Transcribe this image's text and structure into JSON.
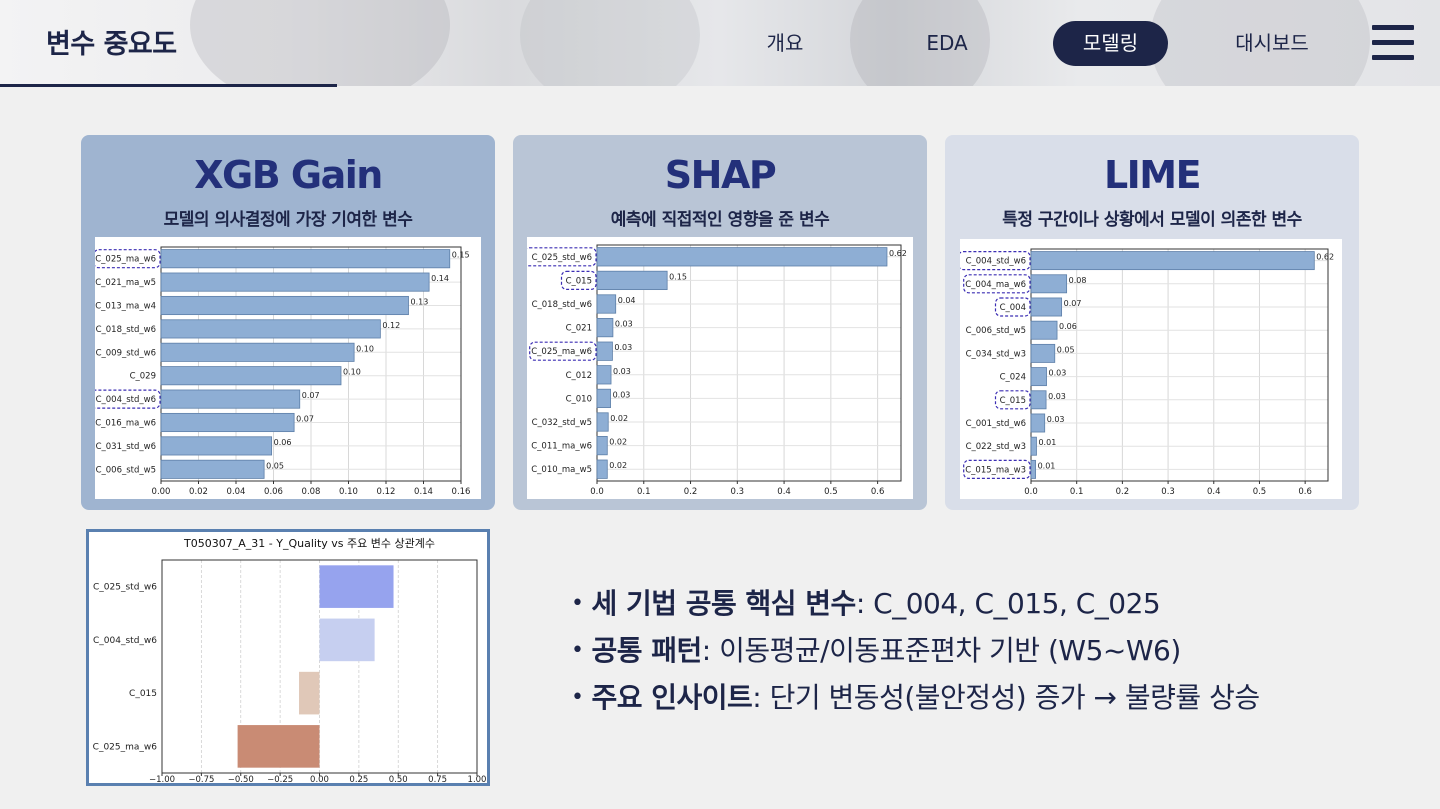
{
  "header": {
    "title": "변수 중요도",
    "nav": [
      {
        "label": "개요",
        "active": false
      },
      {
        "label": "EDA",
        "active": false
      },
      {
        "label": "모델링",
        "active": true
      },
      {
        "label": "대시보드",
        "active": false
      }
    ],
    "menu_icon": "hamburger-menu-icon"
  },
  "cards": [
    {
      "title": "XGB Gain",
      "subtitle": "모델의 의사결정에 가장 기여한 변수"
    },
    {
      "title": "SHAP",
      "subtitle": "예측에 직접적인 영향을 준 변수"
    },
    {
      "title": "LIME",
      "subtitle": "특정 구간이나 상황에서 모델이 의존한 변수"
    }
  ],
  "colors": {
    "navy": "#1d2548",
    "title_blue": "#23307a",
    "bar_blue": "#8eaed4",
    "highlight": "#3b2db3",
    "card1_bg": "#9fb4d0",
    "card2_bg": "#b9c5d6",
    "card3_bg": "#d9dee9"
  },
  "chart_data": [
    {
      "type": "bar",
      "orientation": "horizontal",
      "categories": [
        "C_025_ma_w6",
        "C_021_ma_w5",
        "C_013_ma_w4",
        "C_018_std_w6",
        "C_009_std_w6",
        "C_029",
        "C_004_std_w6",
        "C_016_ma_w6",
        "C_031_std_w6",
        "C_006_std_w5"
      ],
      "values": [
        0.154,
        0.143,
        0.132,
        0.117,
        0.103,
        0.096,
        0.074,
        0.071,
        0.059,
        0.055
      ],
      "labels": [
        "0.15",
        "0.14",
        "0.13",
        "0.12",
        "0.10",
        "0.10",
        "0.07",
        "0.07",
        "0.06",
        "0.05"
      ],
      "xticks": [
        "0.00",
        "0.02",
        "0.04",
        "0.06",
        "0.08",
        "0.10",
        "0.12",
        "0.14",
        "0.16"
      ],
      "xlim": [
        0,
        0.16
      ],
      "highlighted": [
        "C_025_ma_w6",
        "C_004_std_w6"
      ],
      "grid": true
    },
    {
      "type": "bar",
      "orientation": "horizontal",
      "categories": [
        "C_025_std_w6",
        "C_015",
        "C_018_std_w6",
        "C_021",
        "C_025_ma_w6",
        "C_012",
        "C_010",
        "C_032_std_w5",
        "C_011_ma_w6",
        "C_010_ma_w5"
      ],
      "values": [
        0.62,
        0.15,
        0.04,
        0.034,
        0.033,
        0.03,
        0.029,
        0.024,
        0.022,
        0.022
      ],
      "labels": [
        "0.62",
        "0.15",
        "0.04",
        "0.03",
        "0.03",
        "0.03",
        "0.03",
        "0.02",
        "0.02",
        "0.02"
      ],
      "xticks": [
        "0.0",
        "0.1",
        "0.2",
        "0.3",
        "0.4",
        "0.5",
        "0.6"
      ],
      "xlim": [
        0,
        0.65
      ],
      "highlighted": [
        "C_025_std_w6",
        "C_015",
        "C_025_ma_w6"
      ],
      "grid": true
    },
    {
      "type": "bar",
      "orientation": "horizontal",
      "categories": [
        "C_004_std_w6",
        "C_004_ma_w6",
        "C_004",
        "C_006_std_w5",
        "C_034_std_w3",
        "C_024",
        "C_015",
        "C_001_std_w6",
        "C_022_std_w3",
        "C_015_ma_w3"
      ],
      "values": [
        0.62,
        0.078,
        0.067,
        0.057,
        0.052,
        0.034,
        0.033,
        0.03,
        0.012,
        0.01
      ],
      "labels": [
        "0.62",
        "0.08",
        "0.07",
        "0.06",
        "0.05",
        "0.03",
        "0.03",
        "0.03",
        "0.01",
        "0.01"
      ],
      "xticks": [
        "0.0",
        "0.1",
        "0.2",
        "0.3",
        "0.4",
        "0.5",
        "0.6"
      ],
      "xlim": [
        0,
        0.65
      ],
      "highlighted": [
        "C_004_std_w6",
        "C_004_ma_w6",
        "C_004",
        "C_015",
        "C_015_ma_w3"
      ],
      "grid": true
    },
    {
      "type": "bar",
      "orientation": "horizontal",
      "title": "T050307_A_31 - Y_Quality vs 주요 변수 상관계수",
      "categories": [
        "C_025_std_w6",
        "C_004_std_w6",
        "C_015",
        "C_025_ma_w6"
      ],
      "values": [
        0.47,
        0.35,
        -0.13,
        -0.52
      ],
      "colors": [
        "#96a3ee",
        "#c6cff0",
        "#e0c8b8",
        "#c98b74"
      ],
      "xticks": [
        "-1.00",
        "-0.75",
        "-0.50",
        "-0.25",
        "0.00",
        "0.25",
        "0.50",
        "0.75",
        "1.00"
      ],
      "xlim": [
        -1,
        1
      ],
      "grid": true
    }
  ],
  "bullets": [
    {
      "key": "세 기법 공통 핵심 변수",
      "value": ": C_004, C_015, C_025"
    },
    {
      "key": "공통 패턴",
      "value": ": 이동평균/이동표준편차 기반 (W5~W6)"
    },
    {
      "key": "주요 인사이트",
      "value": ": 단기 변동성(불안정성) 증가 → 불량률 상승"
    }
  ]
}
